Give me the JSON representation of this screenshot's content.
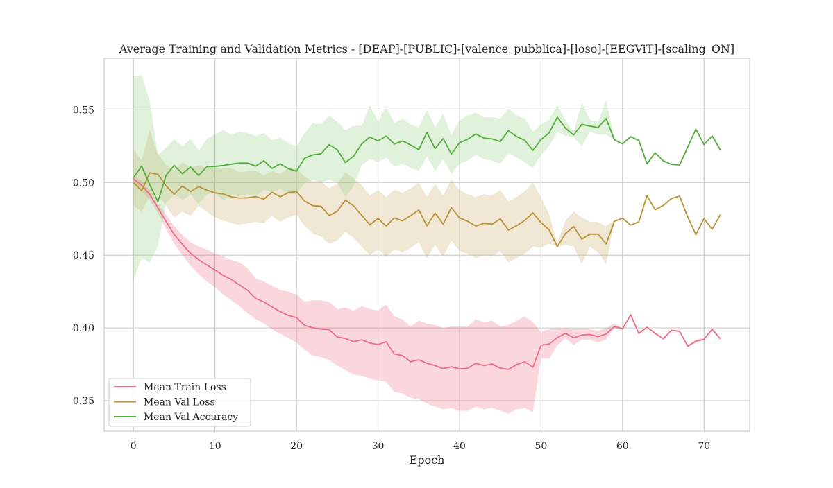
{
  "chart_data": {
    "type": "line",
    "title": "Average Training and Validation Metrics - [DEAP]-[PUBLIC]-[valence_pubblica]-[loso]-[EEGViT]-[scaling_ON]",
    "xlabel": "Epoch",
    "ylabel": "",
    "xlim": [
      -3.6,
      75.6
    ],
    "ylim": [
      0.329,
      0.5855
    ],
    "x_ticks": [
      0,
      10,
      20,
      30,
      40,
      50,
      60,
      70
    ],
    "y_ticks": [
      0.35,
      0.4,
      0.45,
      0.5,
      0.55
    ],
    "y_tick_labels": [
      "0.35",
      "0.40",
      "0.45",
      "0.50",
      "0.55"
    ],
    "grid": true,
    "legend_position": "lower-left",
    "series": [
      {
        "name": "Mean Train Loss",
        "color": "#ee6d85",
        "band_color": "#ee6d85",
        "values": [
          0.5025,
          0.4982,
          0.4918,
          0.4826,
          0.4732,
          0.4643,
          0.4575,
          0.4513,
          0.4469,
          0.4433,
          0.4399,
          0.4361,
          0.4334,
          0.4296,
          0.4259,
          0.4202,
          0.4179,
          0.4144,
          0.4112,
          0.4086,
          0.4071,
          0.4018,
          0.4001,
          0.3993,
          0.3988,
          0.3938,
          0.3928,
          0.3906,
          0.3919,
          0.3896,
          0.3886,
          0.3905,
          0.3821,
          0.381,
          0.3768,
          0.3781,
          0.3757,
          0.3741,
          0.372,
          0.3733,
          0.3719,
          0.3722,
          0.3757,
          0.3741,
          0.3752,
          0.3723,
          0.3715,
          0.3748,
          0.3767,
          0.373,
          0.3881,
          0.389,
          0.3934,
          0.3963,
          0.3933,
          0.3951,
          0.3955,
          0.394,
          0.3959,
          0.401,
          0.3994,
          0.409,
          0.3962,
          0.4005,
          0.3963,
          0.3926,
          0.3983,
          0.3977,
          0.3875,
          0.3909,
          0.3922,
          0.3991,
          0.3925
        ],
        "lower": [
          0.5,
          0.495,
          0.488,
          0.479,
          0.468,
          0.458,
          0.45,
          0.443,
          0.437,
          0.432,
          0.428,
          0.423,
          0.419,
          0.415,
          0.41,
          0.406,
          0.403,
          0.399,
          0.396,
          0.393,
          0.39,
          0.385,
          0.381,
          0.38,
          0.378,
          0.374,
          0.371,
          0.368,
          0.367,
          0.365,
          0.364,
          0.363,
          0.356,
          0.355,
          0.352,
          0.351,
          0.348,
          0.346,
          0.344,
          0.345,
          0.343,
          0.343,
          0.346,
          0.344,
          0.345,
          0.343,
          0.341,
          0.344,
          0.345,
          0.342,
          0.379,
          0.379,
          0.388,
          0.393,
          0.388,
          0.392,
          0.392,
          0.39,
          0.392,
          0.4,
          0.399,
          0.409,
          0.396,
          0.4,
          0.396,
          0.392,
          0.398,
          0.397,
          0.387,
          0.39,
          0.392,
          0.399,
          0.392
        ],
        "upper": [
          0.505,
          0.501,
          0.495,
          0.486,
          0.478,
          0.47,
          0.464,
          0.459,
          0.456,
          0.454,
          0.451,
          0.449,
          0.447,
          0.445,
          0.441,
          0.434,
          0.432,
          0.429,
          0.426,
          0.425,
          0.423,
          0.418,
          0.419,
          0.419,
          0.418,
          0.413,
          0.414,
          0.412,
          0.415,
          0.413,
          0.412,
          0.416,
          0.408,
          0.406,
          0.401,
          0.405,
          0.403,
          0.402,
          0.4,
          0.401,
          0.401,
          0.401,
          0.406,
          0.404,
          0.405,
          0.401,
          0.402,
          0.405,
          0.408,
          0.404,
          0.397,
          0.399,
          0.399,
          0.4,
          0.399,
          0.399,
          0.399,
          0.398,
          0.4,
          0.403,
          0.4,
          0.41,
          0.397,
          0.401,
          0.397,
          0.393,
          0.399,
          0.398,
          0.388,
          0.392,
          0.393,
          0.3995,
          0.393
        ]
      },
      {
        "name": "Mean Val Loss",
        "color": "#b89236",
        "band_color": "#c8a964",
        "values": [
          0.5,
          0.4944,
          0.5067,
          0.5057,
          0.4977,
          0.492,
          0.4976,
          0.4938,
          0.4972,
          0.4948,
          0.4929,
          0.4921,
          0.4902,
          0.4893,
          0.4895,
          0.4903,
          0.4886,
          0.4933,
          0.4902,
          0.4931,
          0.4938,
          0.4872,
          0.4841,
          0.4837,
          0.4773,
          0.4802,
          0.4879,
          0.484,
          0.4775,
          0.471,
          0.4753,
          0.4701,
          0.4757,
          0.4737,
          0.4772,
          0.4811,
          0.4702,
          0.4791,
          0.4714,
          0.4828,
          0.4757,
          0.4734,
          0.4701,
          0.472,
          0.4713,
          0.4751,
          0.4673,
          0.4703,
          0.474,
          0.4792,
          0.4725,
          0.4674,
          0.4559,
          0.4649,
          0.4698,
          0.4611,
          0.4645,
          0.4645,
          0.4578,
          0.4734,
          0.4755,
          0.4707,
          0.473,
          0.4909,
          0.4813,
          0.4842,
          0.489,
          0.4907,
          0.4763,
          0.4642,
          0.4753,
          0.4678,
          0.4779
        ],
        "lower": [
          0.484,
          0.48,
          0.49,
          0.492,
          0.484,
          0.476,
          0.48,
          0.477,
          0.484,
          0.48,
          0.476,
          0.474,
          0.472,
          0.471,
          0.472,
          0.473,
          0.472,
          0.477,
          0.473,
          0.476,
          0.478,
          0.47,
          0.465,
          0.463,
          0.458,
          0.46,
          0.466,
          0.462,
          0.456,
          0.45,
          0.454,
          0.449,
          0.454,
          0.452,
          0.455,
          0.459,
          0.448,
          0.457,
          0.449,
          0.46,
          0.453,
          0.451,
          0.448,
          0.45,
          0.449,
          0.453,
          0.445,
          0.448,
          0.451,
          0.456,
          0.455,
          0.458,
          0.456,
          0.457,
          0.456,
          0.444,
          0.456,
          0.452,
          0.444,
          0.473,
          0.4755,
          0.4705,
          0.473,
          0.4905,
          0.481,
          0.484,
          0.4885,
          0.4905,
          0.476,
          0.464,
          0.475,
          0.4675,
          0.4775
        ],
        "upper": [
          0.523,
          0.515,
          0.536,
          0.52,
          0.512,
          0.508,
          0.514,
          0.51,
          0.512,
          0.51,
          0.51,
          0.51,
          0.51,
          0.507,
          0.508,
          0.508,
          0.505,
          0.508,
          0.506,
          0.51,
          0.51,
          0.504,
          0.501,
          0.501,
          0.496,
          0.499,
          0.507,
          0.503,
          0.498,
          0.491,
          0.495,
          0.49,
          0.495,
          0.493,
          0.496,
          0.5,
          0.49,
          0.499,
          0.491,
          0.502,
          0.495,
          0.492,
          0.49,
          0.492,
          0.491,
          0.495,
          0.487,
          0.49,
          0.494,
          0.5,
          0.49,
          0.478,
          0.458,
          0.474,
          0.48,
          0.476,
          0.473,
          0.473,
          0.47,
          0.474,
          0.476,
          0.471,
          0.4735,
          0.4915,
          0.482,
          0.4845,
          0.4895,
          0.491,
          0.4765,
          0.4645,
          0.4755,
          0.468,
          0.4785
        ]
      },
      {
        "name": "Mean Val Accuracy",
        "color": "#52ad3a",
        "band_color": "#8fcf7f",
        "values": [
          0.5033,
          0.5113,
          0.4985,
          0.4869,
          0.505,
          0.5118,
          0.5061,
          0.5107,
          0.5049,
          0.5109,
          0.5111,
          0.5117,
          0.5126,
          0.5134,
          0.5134,
          0.5113,
          0.515,
          0.5097,
          0.5129,
          0.5095,
          0.5078,
          0.5168,
          0.519,
          0.5198,
          0.5261,
          0.5226,
          0.5137,
          0.5181,
          0.5265,
          0.5313,
          0.5286,
          0.532,
          0.5265,
          0.5286,
          0.5259,
          0.5226,
          0.5345,
          0.5233,
          0.5302,
          0.5196,
          0.5274,
          0.5298,
          0.5334,
          0.5306,
          0.53,
          0.5282,
          0.5357,
          0.5316,
          0.5291,
          0.5221,
          0.5295,
          0.5343,
          0.545,
          0.5374,
          0.5327,
          0.54,
          0.5388,
          0.5379,
          0.544,
          0.5294,
          0.5266,
          0.5316,
          0.5289,
          0.5129,
          0.5205,
          0.5149,
          0.5125,
          0.512,
          0.5245,
          0.5367,
          0.5261,
          0.5321,
          0.5225
        ],
        "lower": [
          0.433,
          0.448,
          0.445,
          0.456,
          0.486,
          0.492,
          0.488,
          0.492,
          0.485,
          0.492,
          0.493,
          0.488,
          0.491,
          0.491,
          0.492,
          0.49,
          0.495,
          0.493,
          0.496,
          0.492,
          0.492,
          0.5,
          0.502,
          0.5,
          0.502,
          0.5,
          0.49,
          0.498,
          0.512,
          0.516,
          0.514,
          0.517,
          0.511,
          0.513,
          0.51,
          0.508,
          0.518,
          0.508,
          0.516,
          0.506,
          0.513,
          0.515,
          0.519,
          0.516,
          0.515,
          0.513,
          0.52,
          0.517,
          0.514,
          0.51,
          0.519,
          0.525,
          0.535,
          0.532,
          0.531,
          0.525,
          0.535,
          0.533,
          0.533,
          0.529,
          0.5264,
          0.5312,
          0.5286,
          0.5126,
          0.5202,
          0.5146,
          0.5122,
          0.5117,
          0.5242,
          0.5364,
          0.5258,
          0.5318,
          0.5222
        ],
        "upper": [
          0.573,
          0.574,
          0.556,
          0.519,
          0.524,
          0.53,
          0.525,
          0.53,
          0.522,
          0.53,
          0.533,
          0.536,
          0.533,
          0.535,
          0.534,
          0.532,
          0.534,
          0.529,
          0.531,
          0.527,
          0.525,
          0.534,
          0.541,
          0.54,
          0.546,
          0.542,
          0.536,
          0.539,
          0.539,
          0.553,
          0.542,
          0.552,
          0.541,
          0.544,
          0.54,
          0.538,
          0.55,
          0.538,
          0.547,
          0.533,
          0.543,
          0.546,
          0.548,
          0.545,
          0.545,
          0.544,
          0.551,
          0.546,
          0.544,
          0.535,
          0.54,
          0.543,
          0.553,
          0.543,
          0.535,
          0.555,
          0.543,
          0.542,
          0.557,
          0.53,
          0.5268,
          0.532,
          0.5292,
          0.5132,
          0.5208,
          0.5152,
          0.5128,
          0.5123,
          0.5248,
          0.537,
          0.5264,
          0.5324,
          0.5228
        ]
      }
    ]
  }
}
